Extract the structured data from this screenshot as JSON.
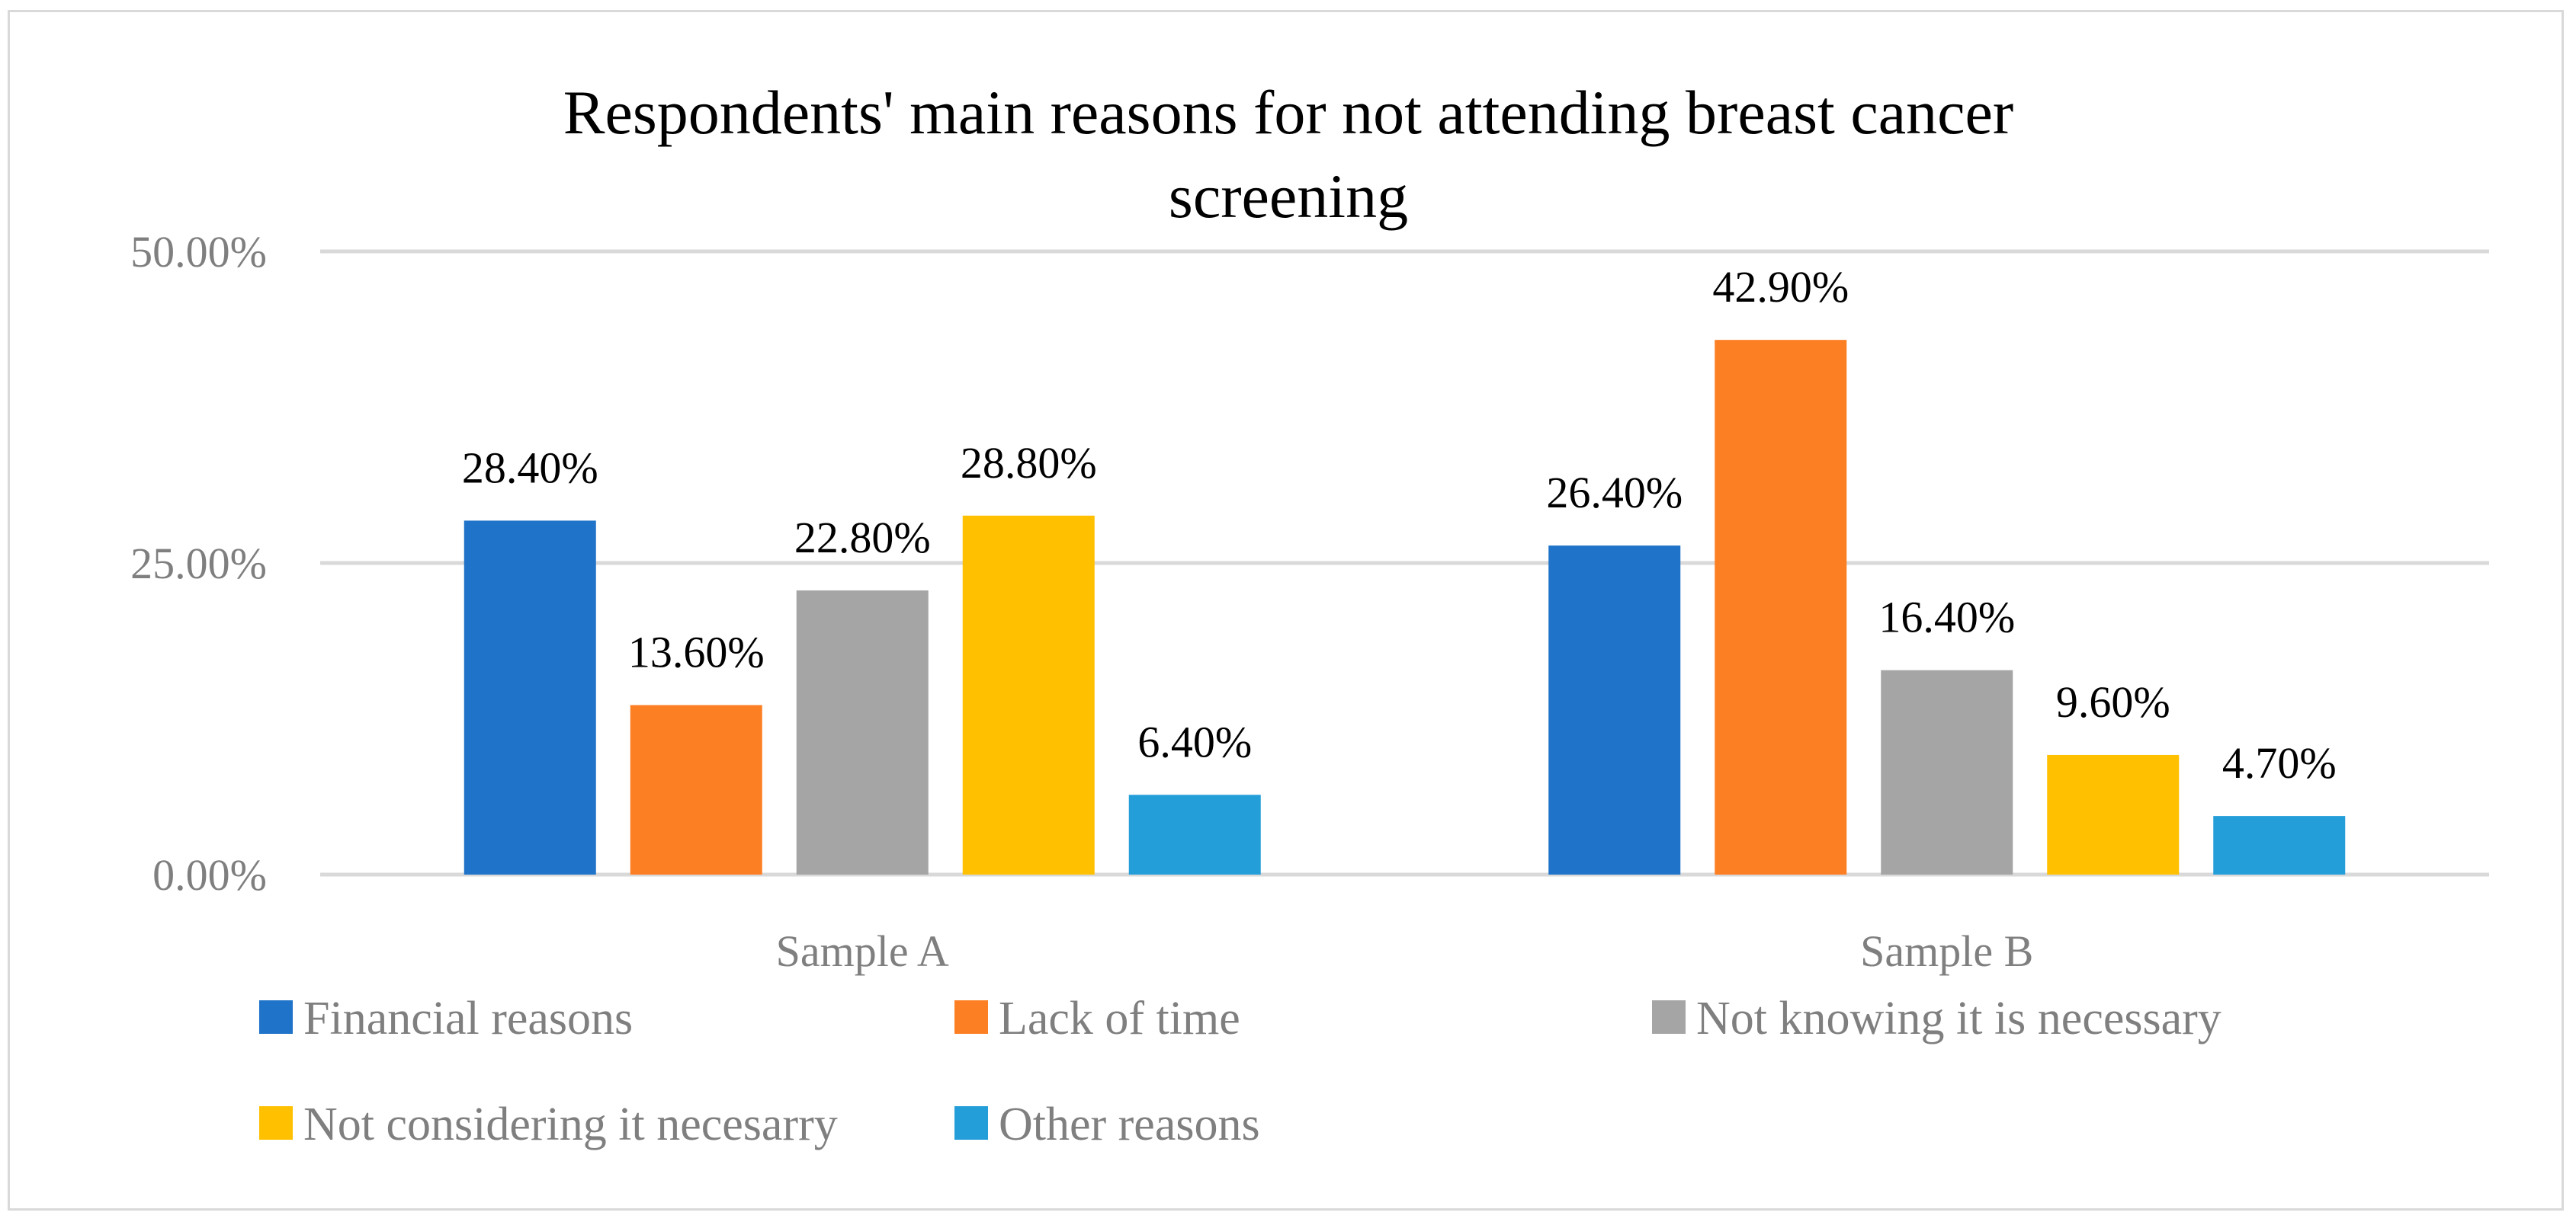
{
  "chart_data": {
    "type": "bar",
    "title_lines": [
      "Respondents' main reasons for not attending breast cancer",
      "screening"
    ],
    "categories": [
      "Sample A",
      "Sample B"
    ],
    "series": [
      {
        "name": "Financial reasons",
        "color": "#1f73c8",
        "values": [
          28.4,
          26.4
        ],
        "labels": [
          "28.40%",
          "26.40%"
        ]
      },
      {
        "name": "Lack of time",
        "color": "#fd7f24",
        "values": [
          13.6,
          42.9
        ],
        "labels": [
          "13.60%",
          "42.90%"
        ]
      },
      {
        "name": "Not knowing it is necessary",
        "color": "#a5a5a5",
        "values": [
          22.8,
          16.4
        ],
        "labels": [
          "22.80%",
          "16.40%"
        ]
      },
      {
        "name": "Not considering it necesarry",
        "color": "#ffc000",
        "values": [
          28.8,
          9.6
        ],
        "labels": [
          "28.80%",
          "9.60%"
        ]
      },
      {
        "name": "Other reasons",
        "color": "#239ed9",
        "values": [
          6.4,
          4.7
        ],
        "labels": [
          "6.40%",
          "4.70%"
        ]
      }
    ],
    "yticks": [
      {
        "value": 0,
        "label": "0.00%"
      },
      {
        "value": 25,
        "label": "25.00%"
      },
      {
        "value": 50,
        "label": "50.00%"
      }
    ],
    "ylim": [
      0,
      50
    ],
    "xlabel": "",
    "ylabel": "",
    "grid": true,
    "legend_position": "bottom"
  }
}
